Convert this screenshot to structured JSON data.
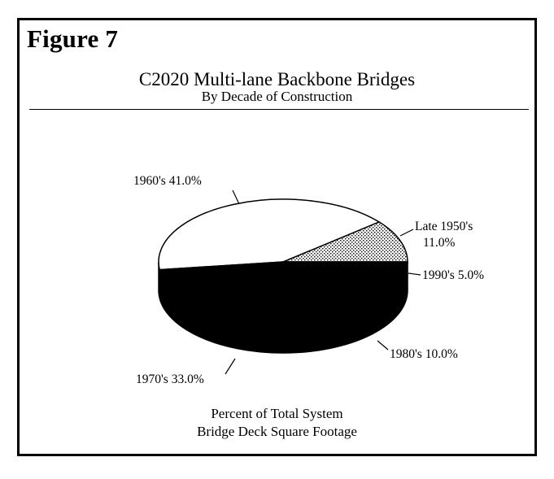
{
  "figure_label": "Figure 7",
  "chart_data": {
    "type": "pie",
    "title": "C2020 Multi-lane Backbone Bridges",
    "subtitle": "By Decade of Construction",
    "slices": [
      {
        "label": "Late 1950's",
        "value": 11.0,
        "value_text": "11.0%",
        "fill": "#d4d4d4",
        "pattern": "stipple"
      },
      {
        "label": "1960's",
        "value": 41.0,
        "value_text": "41.0%",
        "fill": "#ffffff"
      },
      {
        "label": "1970's",
        "value": 33.0,
        "value_text": "33.0%",
        "fill": "#000000"
      },
      {
        "label": "1980's",
        "value": 10.0,
        "value_text": "10.0%",
        "fill": "#000000"
      },
      {
        "label": "1990's",
        "value": 5.0,
        "value_text": "5.0%",
        "fill": "#000000"
      }
    ],
    "footnote": [
      "Percent of Total System",
      "Bridge Deck Square Footage"
    ]
  }
}
